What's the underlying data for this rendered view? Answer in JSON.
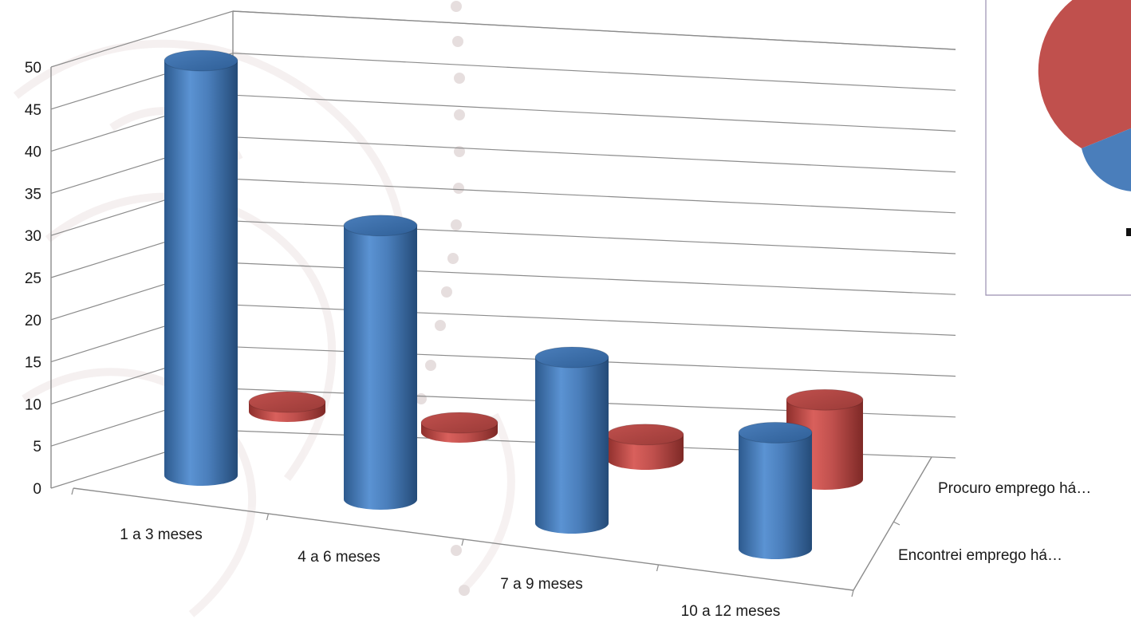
{
  "chart_data": {
    "type": "bar",
    "style": "3d-cylinder",
    "categories": [
      "1 a 3 meses",
      "4 a 6 meses",
      "7 a 9 meses",
      "10 a 12 meses"
    ],
    "depth_categories": [
      "Encontrei emprego há…",
      "Procuro emprego há…"
    ],
    "series": [
      {
        "values": [
          50,
          33,
          20,
          14
        ],
        "color": "#4a7ebb"
      },
      {
        "values": [
          1,
          1,
          4,
          11
        ],
        "color": "#c0504d"
      }
    ],
    "yticks": [
      0,
      5,
      10,
      15,
      20,
      25,
      30,
      35,
      40,
      45,
      50
    ],
    "ylim": [
      0,
      50
    ],
    "grid": true,
    "legend": "none"
  },
  "inset": {
    "type": "pie",
    "colors": [
      "#c0504d",
      "#4a7ebb"
    ]
  }
}
